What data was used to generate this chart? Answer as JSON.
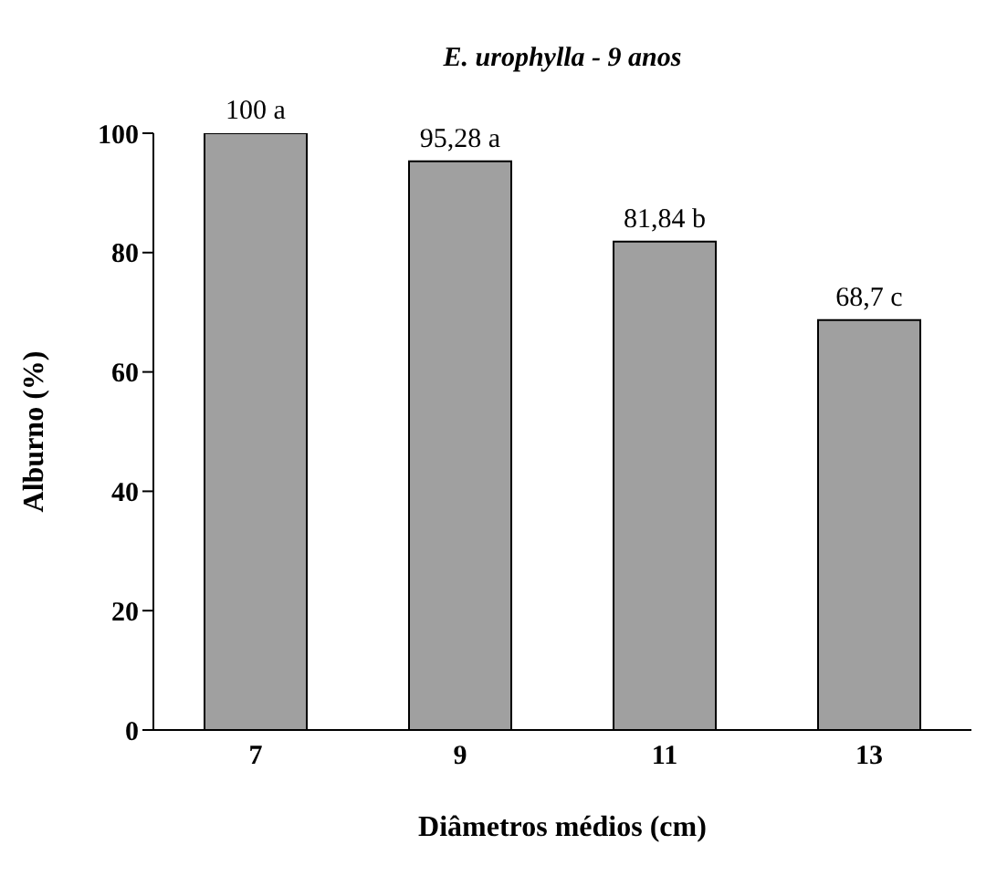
{
  "chart_data": {
    "type": "bar",
    "title": "E. urophylla - 9 anos",
    "xlabel": "Diâmetros médios (cm)",
    "ylabel": "Alburno (%)",
    "categories": [
      "7",
      "9",
      "11",
      "13"
    ],
    "values": [
      100,
      95.28,
      81.84,
      68.7
    ],
    "value_labels": [
      "100 a",
      "95,28 a",
      "81,84 b",
      "68,7 c"
    ],
    "color": "#a0a0a0",
    "ylim": [
      0,
      100
    ],
    "yticks": [
      0,
      20,
      40,
      60,
      80,
      100
    ],
    "grid": false,
    "legend": false
  }
}
